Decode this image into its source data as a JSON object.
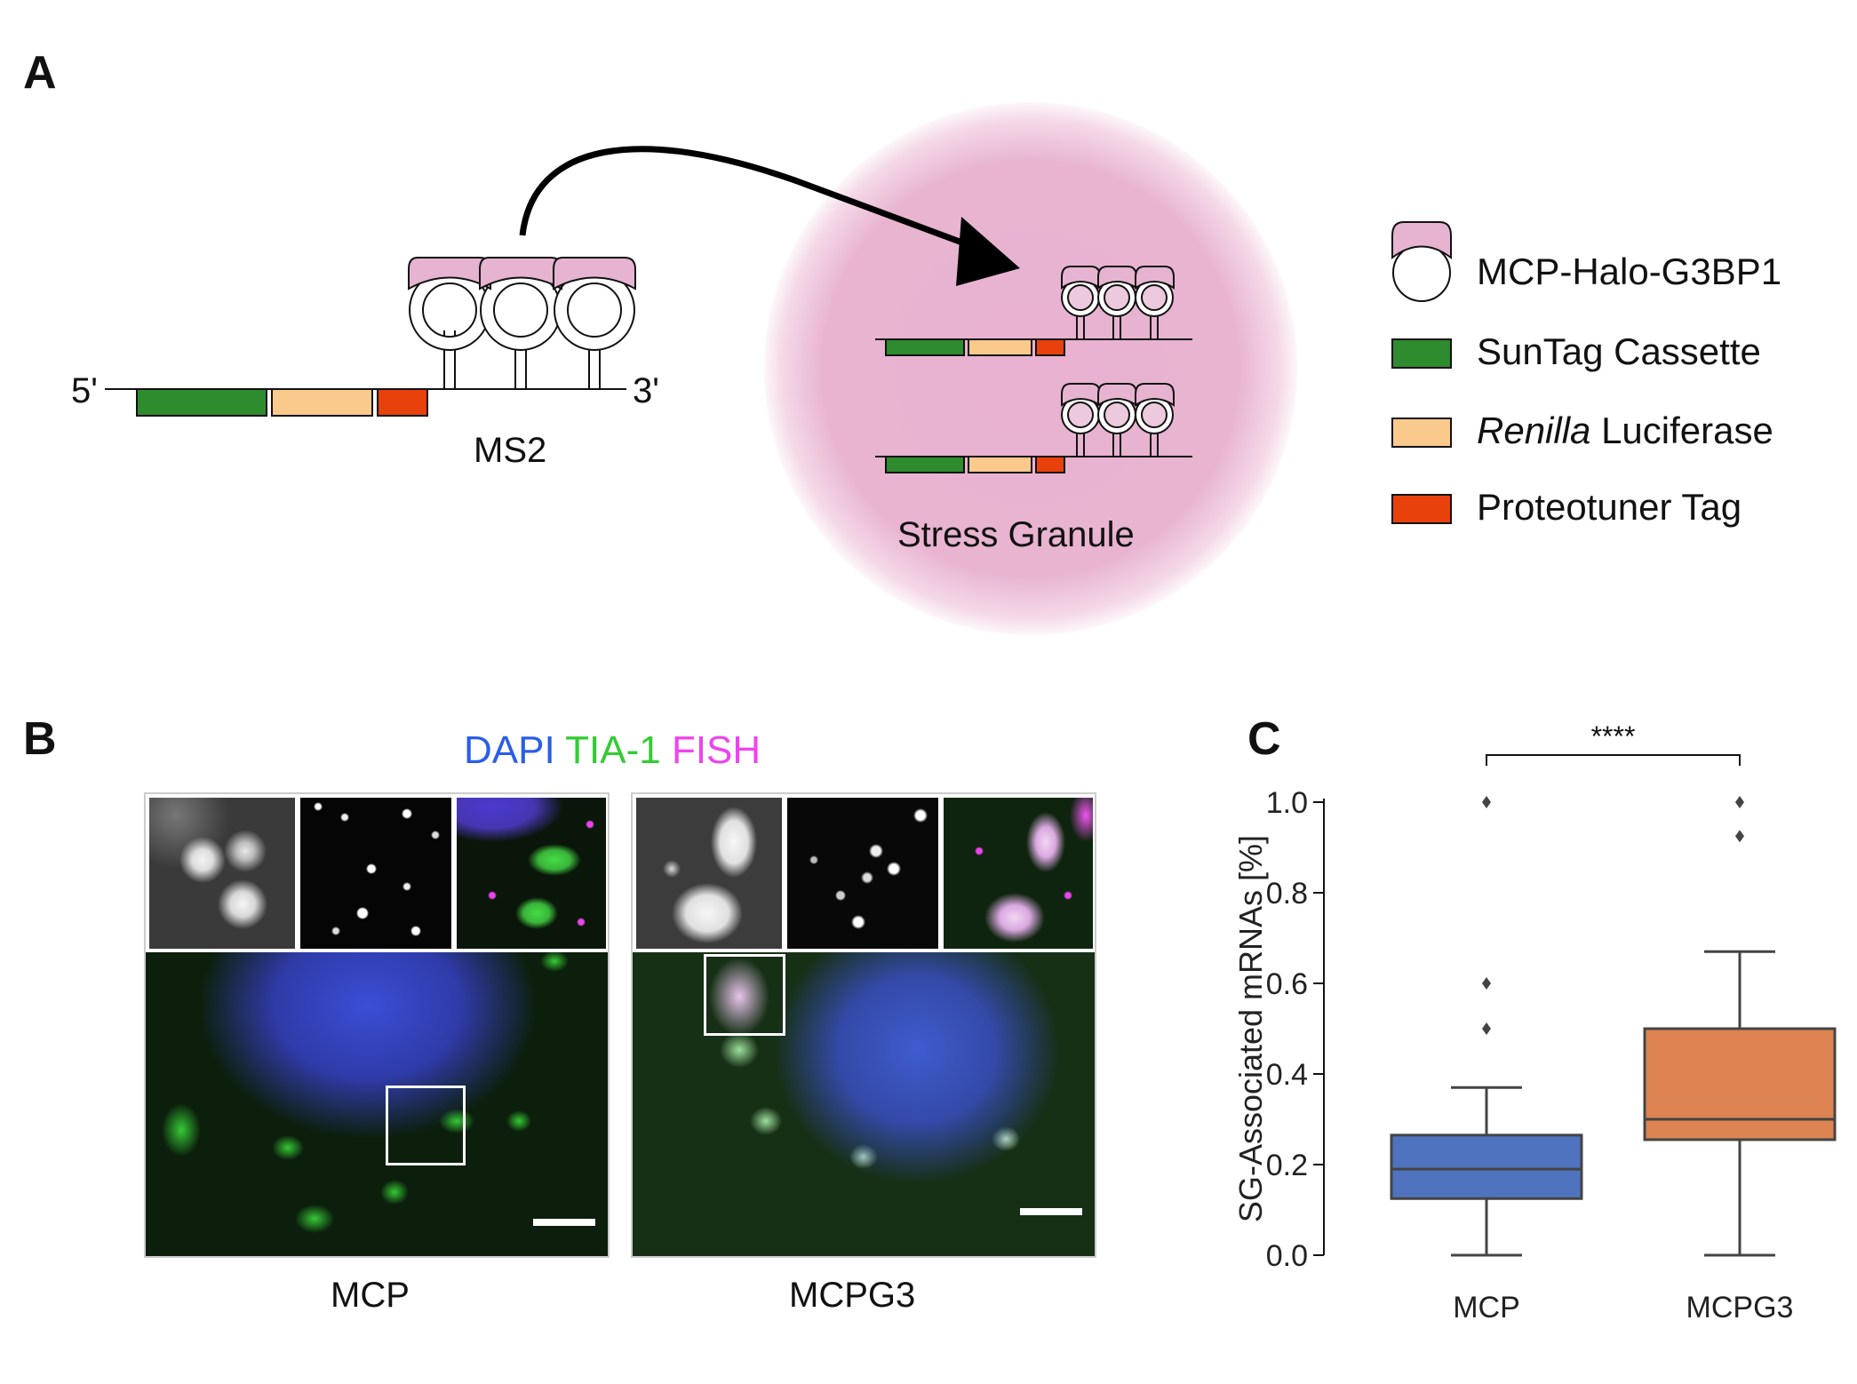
{
  "panels": {
    "a": {
      "letter": "A"
    },
    "b": {
      "letter": "B"
    },
    "c": {
      "letter": "C"
    }
  },
  "construct": {
    "five_prime": "5'",
    "three_prime": "3'",
    "ms2_label": "MS2",
    "granule_label": "Stress Granule"
  },
  "legend": {
    "items": [
      {
        "label": "MCP-Halo-G3BP1",
        "icon": "mcp-halo-g3bp1-icon"
      },
      {
        "label": "SunTag Cassette",
        "color": "#2e8b2e"
      },
      {
        "label_italic": "Renilla",
        "label": " Luciferase",
        "color": "#fac98c"
      },
      {
        "label": "Proteotuner Tag",
        "color": "#e8410b"
      }
    ]
  },
  "microscopy": {
    "channels": [
      {
        "label": "DAPI",
        "color": "#2a5ee8"
      },
      {
        "label": "TIA-1",
        "color": "#33cc33"
      },
      {
        "label": "FISH",
        "color": "#ee44ee"
      }
    ],
    "conditions": [
      "MCP",
      "MCPG3"
    ]
  },
  "chart_data": {
    "type": "box",
    "ylabel": "SG-Associated mRNAs [%]",
    "ylim": [
      0.0,
      1.0
    ],
    "yticks": [
      "0.0",
      "0.2",
      "0.4",
      "0.6",
      "0.8",
      "1.0"
    ],
    "ytick_values": [
      0.0,
      0.2,
      0.4,
      0.6,
      0.8,
      1.0
    ],
    "categories": [
      "MCP",
      "MCPG3"
    ],
    "boxes": [
      {
        "name": "MCP",
        "whisker_low": 0.0,
        "q1": 0.125,
        "median": 0.19,
        "q3": 0.265,
        "whisker_high": 0.37,
        "outliers": [
          0.5,
          0.6,
          1.0
        ],
        "color": "#4f73be"
      },
      {
        "name": "MCPG3",
        "whisker_low": 0.0,
        "q1": 0.255,
        "median": 0.3,
        "q3": 0.5,
        "whisker_high": 0.67,
        "outliers": [
          0.925,
          1.0
        ],
        "color": "#dd8452"
      }
    ],
    "significance": "****"
  }
}
